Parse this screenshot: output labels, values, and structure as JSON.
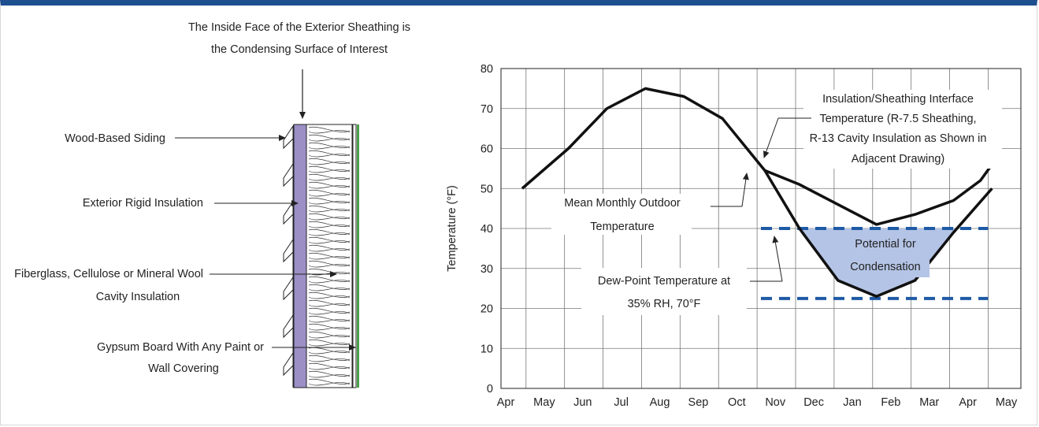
{
  "colors": {
    "header_bar": "#1e4f8f",
    "dew_point_dash": "#1e5aa5",
    "condensation_fill": "#b4c4e6",
    "sheathing_fill": "#9b8fc6",
    "gypsum_green": "#4aa04a"
  },
  "wall_diagram": {
    "title_line1": "The Inside Face of the Exterior Sheathing is",
    "title_line2": "the Condensing Surface of Interest",
    "labels": {
      "siding": "Wood-Based Siding",
      "rigid": "Exterior Rigid Insulation",
      "cavity_line1": "Fiberglass, Cellulose or Mineral Wool",
      "cavity_line2": "Cavity Insulation",
      "gypsum_line1": "Gypsum Board With Any Paint or",
      "gypsum_line2": "Wall Covering"
    }
  },
  "chart_data": {
    "type": "line",
    "ylabel": "Temperature (°F)",
    "xlabel": "",
    "ylim": [
      0,
      80
    ],
    "yticks": [
      0,
      10,
      20,
      30,
      40,
      50,
      60,
      70,
      80
    ],
    "month_labels": [
      "Apr",
      "May",
      "Jun",
      "Jul",
      "Aug",
      "Sep",
      "Oct",
      "Nov",
      "Dec",
      "Jan",
      "Feb",
      "Mar",
      "Apr",
      "May"
    ],
    "grid": true,
    "series": [
      {
        "name": "Mean Monthly Outdoor Temperature",
        "points": [
          [
            0.4,
            50
          ],
          [
            1.6,
            60
          ],
          [
            2.6,
            70
          ],
          [
            3.6,
            75
          ],
          [
            4.6,
            73
          ],
          [
            5.6,
            67.5
          ],
          [
            6.7,
            54.5
          ],
          [
            7.6,
            40
          ],
          [
            8.6,
            27
          ],
          [
            9.6,
            23
          ],
          [
            10.6,
            27
          ],
          [
            11.6,
            39
          ],
          [
            12.6,
            50
          ]
        ]
      },
      {
        "name": "Insulation/Sheathing Interface Temperature",
        "points": [
          [
            6.7,
            54.5
          ],
          [
            7.6,
            51
          ],
          [
            8.6,
            46
          ],
          [
            9.6,
            41
          ],
          [
            10.6,
            43.5
          ],
          [
            11.6,
            47
          ],
          [
            12.3,
            52
          ],
          [
            12.6,
            56
          ]
        ]
      }
    ],
    "dew_point_lines": [
      40,
      22.5
    ],
    "dew_point_x_range": [
      6.6,
      12.5
    ],
    "condensation_region": {
      "boundary_y": 40
    },
    "annotations": {
      "interface_line1": "Insulation/Sheathing Interface",
      "interface_line2": "Temperature (R-7.5 Sheathing,",
      "interface_line3": "R-13 Cavity Insulation as Shown in",
      "interface_line4": "Adjacent Drawing)",
      "outdoor_line1": "Mean Monthly Outdoor",
      "outdoor_line2": "Temperature",
      "dew_line1": "Dew-Point Temperature at",
      "dew_line2": "35% RH, 70°F",
      "condensation_line1": "Potential for",
      "condensation_line2": "Condensation"
    }
  }
}
